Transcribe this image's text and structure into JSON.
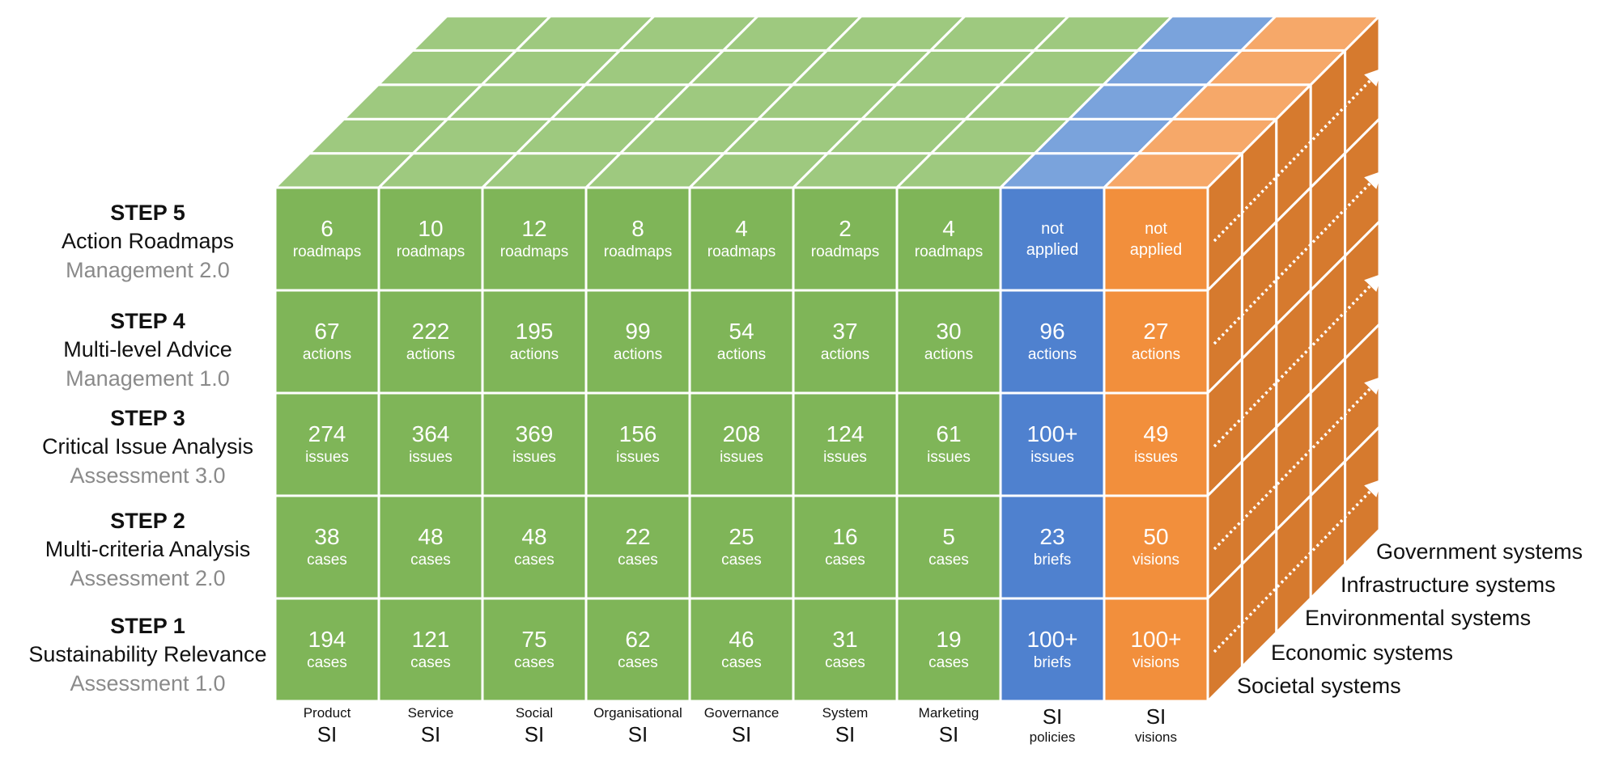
{
  "steps": [
    {
      "title": "STEP 5",
      "name": "Action Roadmaps",
      "sub": "Management 2.0"
    },
    {
      "title": "STEP 4",
      "name": "Multi-level Advice",
      "sub": "Management 1.0"
    },
    {
      "title": "STEP 3",
      "name": "Critical Issue Analysis",
      "sub": "Assessment 3.0"
    },
    {
      "title": "STEP 2",
      "name": "Multi-criteria Analysis",
      "sub": "Assessment 2.0"
    },
    {
      "title": "STEP 1",
      "name": "Sustainability Relevance",
      "sub": "Assessment 1.0"
    }
  ],
  "columns": [
    {
      "top": "Product",
      "bottom": "SI",
      "layout": "small-big"
    },
    {
      "top": "Service",
      "bottom": "SI",
      "layout": "small-big"
    },
    {
      "top": "Social",
      "bottom": "SI",
      "layout": "small-big"
    },
    {
      "top": "Organisational",
      "bottom": "SI",
      "layout": "small-big"
    },
    {
      "top": "Governance",
      "bottom": "SI",
      "layout": "small-big"
    },
    {
      "top": "System",
      "bottom": "SI",
      "layout": "small-big"
    },
    {
      "top": "Marketing",
      "bottom": "SI",
      "layout": "small-big"
    },
    {
      "top": "SI",
      "bottom": "policies",
      "layout": "big-small"
    },
    {
      "top": "SI",
      "bottom": "visions",
      "layout": "big-small"
    }
  ],
  "cells": [
    [
      {
        "num": "6",
        "unit": "roadmaps"
      },
      {
        "num": "10",
        "unit": "roadmaps"
      },
      {
        "num": "12",
        "unit": "roadmaps"
      },
      {
        "num": "8",
        "unit": "roadmaps"
      },
      {
        "num": "4",
        "unit": "roadmaps"
      },
      {
        "num": "2",
        "unit": "roadmaps"
      },
      {
        "num": "4",
        "unit": "roadmaps"
      },
      {
        "num": "not",
        "unit": "applied",
        "na": true
      },
      {
        "num": "not",
        "unit": "applied",
        "na": true
      }
    ],
    [
      {
        "num": "67",
        "unit": "actions"
      },
      {
        "num": "222",
        "unit": "actions"
      },
      {
        "num": "195",
        "unit": "actions"
      },
      {
        "num": "99",
        "unit": "actions"
      },
      {
        "num": "54",
        "unit": "actions"
      },
      {
        "num": "37",
        "unit": "actions"
      },
      {
        "num": "30",
        "unit": "actions"
      },
      {
        "num": "96",
        "unit": "actions"
      },
      {
        "num": "27",
        "unit": "actions"
      }
    ],
    [
      {
        "num": "274",
        "unit": "issues"
      },
      {
        "num": "364",
        "unit": "issues"
      },
      {
        "num": "369",
        "unit": "issues"
      },
      {
        "num": "156",
        "unit": "issues"
      },
      {
        "num": "208",
        "unit": "issues"
      },
      {
        "num": "124",
        "unit": "issues"
      },
      {
        "num": "61",
        "unit": "issues"
      },
      {
        "num": "100+",
        "unit": "issues"
      },
      {
        "num": "49",
        "unit": "issues"
      }
    ],
    [
      {
        "num": "38",
        "unit": "cases"
      },
      {
        "num": "48",
        "unit": "cases"
      },
      {
        "num": "48",
        "unit": "cases"
      },
      {
        "num": "22",
        "unit": "cases"
      },
      {
        "num": "25",
        "unit": "cases"
      },
      {
        "num": "16",
        "unit": "cases"
      },
      {
        "num": "5",
        "unit": "cases"
      },
      {
        "num": "23",
        "unit": "briefs"
      },
      {
        "num": "50",
        "unit": "visions"
      }
    ],
    [
      {
        "num": "194",
        "unit": "cases"
      },
      {
        "num": "121",
        "unit": "cases"
      },
      {
        "num": "75",
        "unit": "cases"
      },
      {
        "num": "62",
        "unit": "cases"
      },
      {
        "num": "46",
        "unit": "cases"
      },
      {
        "num": "31",
        "unit": "cases"
      },
      {
        "num": "19",
        "unit": "cases"
      },
      {
        "num": "100+",
        "unit": "briefs"
      },
      {
        "num": "100+",
        "unit": "visions"
      }
    ]
  ],
  "systems": [
    "Government systems",
    "Infrastructure systems",
    "Environmental systems",
    "Economic systems",
    "Societal systems"
  ],
  "colors": {
    "green_front": "#7fb558",
    "green_top": "#9ec97f",
    "blue_front": "#4f81cf",
    "blue_top": "#7aa3dc",
    "orange_front": "#f28f3c",
    "orange_top": "#f6a869",
    "orange_side": "#d67a2e",
    "grid_line": "#ffffff"
  }
}
